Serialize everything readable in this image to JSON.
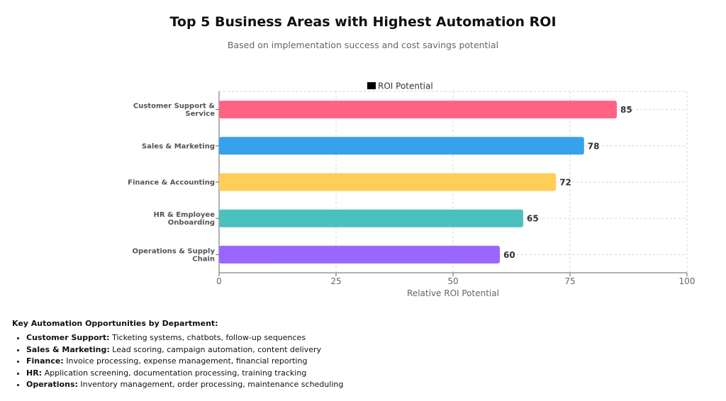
{
  "header": {
    "title": "Top 5 Business Areas with Highest Automation ROI",
    "subtitle": "Based on implementation success and cost savings potential"
  },
  "chart_data": {
    "type": "bar",
    "orientation": "horizontal",
    "categories": [
      [
        "Customer Support &",
        "Service"
      ],
      [
        "Sales & Marketing"
      ],
      [
        "Finance & Accounting"
      ],
      [
        "HR & Employee",
        "Onboarding"
      ],
      [
        "Operations & Supply",
        "Chain"
      ]
    ],
    "series": [
      {
        "name": "ROI Potential",
        "values": [
          85,
          78,
          72,
          65,
          60
        ],
        "colors": [
          "#ff6384",
          "#36a2eb",
          "#ffce56",
          "#4bc0c0",
          "#9966ff"
        ]
      }
    ],
    "xlabel": "Relative ROI Potential",
    "ylabel": "",
    "xlim": [
      0,
      100
    ],
    "xticks": [
      0,
      25,
      50,
      75,
      100
    ],
    "grid": true,
    "legend": "top-center",
    "data_labels": true
  },
  "notes": {
    "heading": "Key Automation Opportunities by Department:",
    "items": [
      {
        "label": "Customer Support:",
        "text": "Ticketing systems, chatbots, follow-up sequences"
      },
      {
        "label": "Sales & Marketing:",
        "text": "Lead scoring, campaign automation, content delivery"
      },
      {
        "label": "Finance:",
        "text": "Invoice processing, expense management, financial reporting"
      },
      {
        "label": "HR:",
        "text": "Application screening, documentation processing, training tracking"
      },
      {
        "label": "Operations:",
        "text": "Inventory management, order processing, maintenance scheduling"
      }
    ]
  }
}
